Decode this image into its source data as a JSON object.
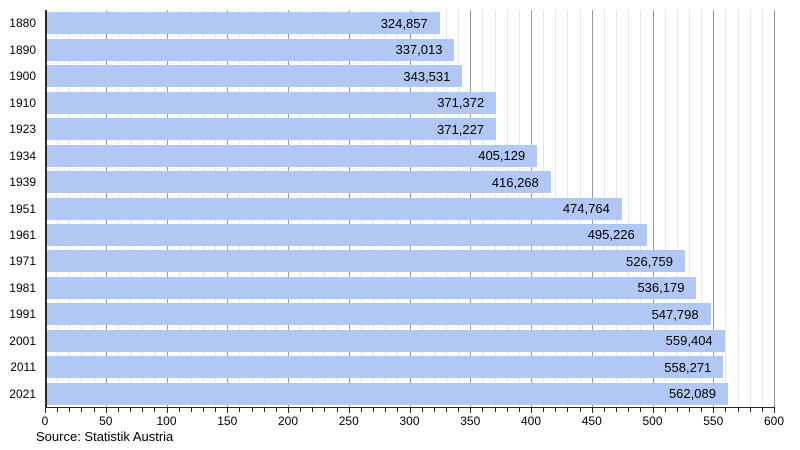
{
  "chart_data": {
    "type": "bar",
    "orientation": "horizontal",
    "title": "",
    "categories": [
      "1880",
      "1890",
      "1900",
      "1910",
      "1923",
      "1934",
      "1939",
      "1951",
      "1961",
      "1971",
      "1981",
      "1991",
      "2001",
      "2011",
      "2021"
    ],
    "values": [
      324857,
      337013,
      343531,
      371372,
      371227,
      405129,
      416268,
      474764,
      495226,
      526759,
      536179,
      547798,
      559404,
      558271,
      562089
    ],
    "value_labels": [
      "324,857",
      "337,013",
      "343,531",
      "371,372",
      "371,227",
      "405,129",
      "416,268",
      "474,764",
      "495,226",
      "526,759",
      "536,179",
      "547,798",
      "559,404",
      "558,271",
      "562,089"
    ],
    "xlabel": "",
    "ylabel": "",
    "xlim": [
      0,
      600
    ],
    "x_unit_divisor": 1000,
    "x_major_step": 50,
    "x_minor_step": 10,
    "x_tick_labels": [
      "0",
      "50",
      "100",
      "150",
      "200",
      "250",
      "300",
      "350",
      "400",
      "450",
      "500",
      "550",
      "600"
    ],
    "grid": true,
    "legend": "none",
    "source": "Source: Statistik Austria",
    "colors": {
      "bar": "#b1c8f5",
      "minor_grid": "#e7e7e7",
      "major_grid": "#9a9a9a",
      "axis": "#2b2b2b",
      "text": "#000000",
      "background": "#ffffff"
    }
  }
}
